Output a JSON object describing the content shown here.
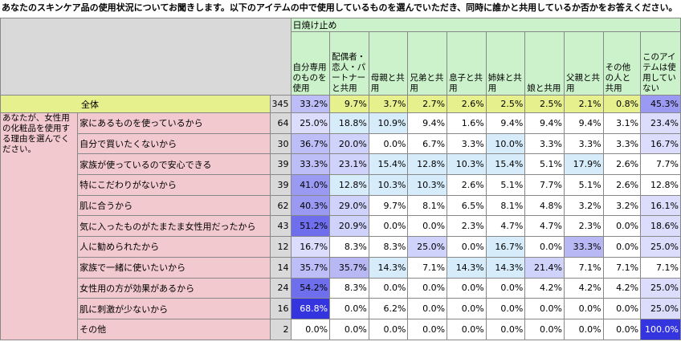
{
  "title": "あなたのスキンケア品の使用状況についてお聞きします。以下のアイテムの中で使用しているものを選んでいただき、同時に誰かと共用しているか否かをお答えください。",
  "group_header": "日焼け止め",
  "columns": [
    "自分専用のものを使用",
    "配偶者・恋人・パートナーと共用",
    "母親と共用",
    "兄弟と共用",
    "息子と共用",
    "姉妹と共用",
    "娘と共用",
    "父親と共用",
    "その他の人と共用",
    "このアイテムは使用していない"
  ],
  "side_label": "あなたが、女性用の化粧品を使用する理由を選んでください。",
  "total": {
    "label": "全体",
    "n": "345",
    "values": [
      "33.2%",
      "9.7%",
      "3.7%",
      "2.7%",
      "2.6%",
      "2.5%",
      "2.5%",
      "2.1%",
      "0.8%",
      "45.3%"
    ]
  },
  "rows": [
    {
      "label": "家にあるものを使っているから",
      "n": "64",
      "values": [
        "25.0%",
        "18.8%",
        "10.9%",
        "9.4%",
        "1.6%",
        "9.4%",
        "9.4%",
        "9.4%",
        "3.1%",
        "23.4%"
      ]
    },
    {
      "label": "自分で買いたくないから",
      "n": "30",
      "values": [
        "36.7%",
        "20.0%",
        "0.0%",
        "6.7%",
        "3.3%",
        "10.0%",
        "3.3%",
        "3.3%",
        "3.3%",
        "16.7%"
      ]
    },
    {
      "label": "家族が使っているので安心できる",
      "n": "39",
      "values": [
        "33.3%",
        "23.1%",
        "15.4%",
        "12.8%",
        "10.3%",
        "15.4%",
        "5.1%",
        "17.9%",
        "2.6%",
        "7.7%"
      ]
    },
    {
      "label": "特にこだわりがないから",
      "n": "39",
      "values": [
        "41.0%",
        "12.8%",
        "10.3%",
        "10.3%",
        "2.6%",
        "5.1%",
        "7.7%",
        "5.1%",
        "2.6%",
        "12.8%"
      ]
    },
    {
      "label": "肌に合うから",
      "n": "62",
      "values": [
        "40.3%",
        "29.0%",
        "9.7%",
        "8.1%",
        "6.5%",
        "8.1%",
        "4.8%",
        "3.2%",
        "3.2%",
        "16.1%"
      ]
    },
    {
      "label": "気に入ったものがたまたま女性用だったから",
      "n": "43",
      "values": [
        "51.2%",
        "20.9%",
        "0.0%",
        "0.0%",
        "2.3%",
        "4.7%",
        "4.7%",
        "2.3%",
        "0.0%",
        "18.6%"
      ]
    },
    {
      "label": "人に勧められたから",
      "n": "12",
      "values": [
        "16.7%",
        "8.3%",
        "8.3%",
        "25.0%",
        "0.0%",
        "16.7%",
        "0.0%",
        "33.3%",
        "0.0%",
        "25.0%"
      ]
    },
    {
      "label": "家族で一緒に使いたいから",
      "n": "14",
      "values": [
        "35.7%",
        "35.7%",
        "14.3%",
        "7.1%",
        "14.3%",
        "14.3%",
        "21.4%",
        "7.1%",
        "7.1%",
        "7.1%"
      ]
    },
    {
      "label": "女性用の方が効果があるから",
      "n": "24",
      "values": [
        "54.2%",
        "8.3%",
        "0.0%",
        "0.0%",
        "0.0%",
        "0.0%",
        "4.2%",
        "4.2%",
        "4.2%",
        "25.0%"
      ]
    },
    {
      "label": "肌に刺激が少ないから",
      "n": "16",
      "values": [
        "68.8%",
        "0.0%",
        "6.2%",
        "0.0%",
        "0.0%",
        "0.0%",
        "0.0%",
        "0.0%",
        "0.0%",
        "25.0%"
      ]
    },
    {
      "label": "その他",
      "n": "2",
      "values": [
        "0.0%",
        "0.0%",
        "0.0%",
        "0.0%",
        "0.0%",
        "0.0%",
        "0.0%",
        "0.0%",
        "0.0%",
        "100.0%"
      ]
    }
  ]
}
